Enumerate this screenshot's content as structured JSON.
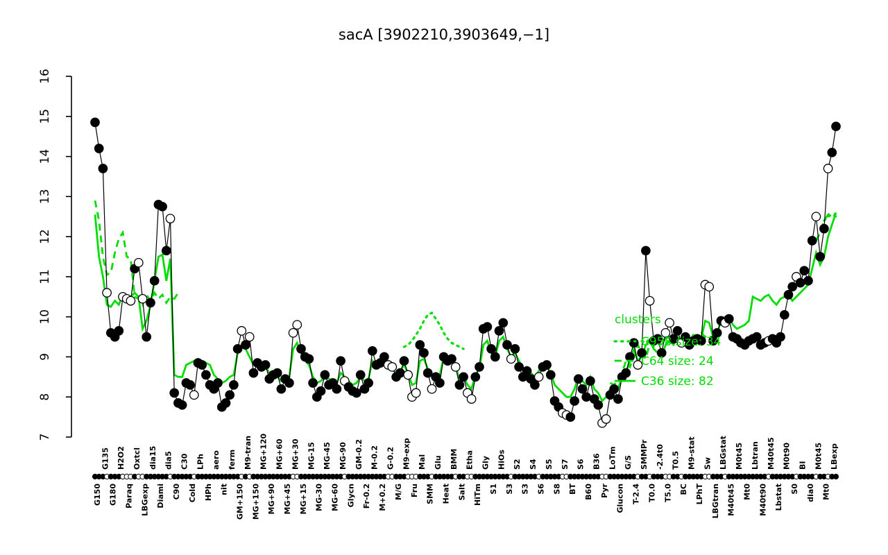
{
  "window": {
    "background": "#ffffff"
  },
  "chart_data": {
    "type": "line",
    "title": "sacA [3902210,3903649,−1]",
    "ylim": [
      7,
      16
    ],
    "yticks": [
      7,
      8,
      9,
      10,
      11,
      12,
      13,
      14,
      15,
      16
    ],
    "grid": false,
    "legend_position": "right-center-overlapping-plot",
    "colors": {
      "cluster_green": "#00DD00",
      "gene": "#000000",
      "background": "#ffffff"
    },
    "x_axis": {
      "points_per_label": 2,
      "row_pattern": "alternating-bottom-first",
      "labels": [
        "G150",
        "G135",
        "G180",
        "H2O2",
        "Paraq",
        "Oxtcl",
        "LBGexp",
        "dia15",
        "Diami",
        "dia5",
        "C90",
        "C30",
        "Cold",
        "LPh",
        "HPh",
        "aero",
        "nit",
        "ferm",
        "GM+150",
        "M9-tran",
        "MG+150",
        "MG+120",
        "MG+90",
        "MG+60",
        "MG+45",
        "MG+30",
        "MG+15",
        "MG-15",
        "MG-30",
        "MG-45",
        "MG-60",
        "MG-90",
        "Glycn",
        "GM-0.2",
        "Fr-0.2",
        "M-0.2",
        "M+0.2",
        "G-0.2",
        "M/G",
        "M9-exp",
        "Fru",
        "Mal",
        "SMM",
        "Glu",
        "Heat",
        "BMM",
        "Salt",
        "Etha",
        "HiTm",
        "Gly",
        "S1",
        "HiOs",
        "S3",
        "S2",
        "S3",
        "S4",
        "S6",
        "S5",
        "S8",
        "S7",
        "BT",
        "S6",
        "B60",
        "B36",
        "Pyr",
        "LoTm",
        "Glucon",
        "G/S",
        "T-2.4",
        "SMMPr",
        "T0.0",
        "-2.4t0",
        "T5.0",
        "T0.5",
        "BC",
        "M9-stat",
        "LPhT",
        "Sw",
        "LBGtran",
        "LBGstat",
        "M40t45",
        "M0t45",
        "Mt0",
        "Lbtran",
        "M40t90",
        "M40t45",
        "Lbstat",
        "M0t90",
        "S0",
        "BI",
        "dia0",
        "M0t45",
        "Mt0",
        "LBexp"
      ]
    },
    "gene_profile": {
      "pair_values": [
        [
          14.85,
          14.2
        ],
        [
          13.7,
          10.6
        ],
        [
          9.6,
          9.5
        ],
        [
          9.65,
          10.5
        ],
        [
          10.45,
          10.4
        ],
        [
          11.2,
          11.35
        ],
        [
          10.45,
          9.5
        ],
        [
          10.35,
          10.9
        ],
        [
          12.8,
          12.75
        ],
        [
          11.65,
          12.45
        ],
        [
          8.1,
          7.85
        ],
        [
          7.8,
          8.35
        ],
        [
          8.3,
          8.05
        ],
        [
          8.85,
          8.8
        ],
        [
          8.55,
          8.3
        ],
        [
          8.2,
          8.35
        ],
        [
          7.75,
          7.85
        ],
        [
          8.05,
          8.3
        ],
        [
          9.2,
          9.65
        ],
        [
          9.3,
          9.5
        ],
        [
          8.6,
          8.85
        ],
        [
          8.75,
          8.8
        ],
        [
          8.45,
          8.55
        ],
        [
          8.6,
          8.2
        ],
        [
          8.45,
          8.35
        ],
        [
          9.6,
          9.8
        ],
        [
          9.2,
          9.0
        ],
        [
          8.95,
          8.35
        ],
        [
          8.0,
          8.15
        ],
        [
          8.55,
          8.3
        ],
        [
          8.35,
          8.2
        ],
        [
          8.9,
          8.4
        ],
        [
          8.25,
          8.15
        ],
        [
          8.1,
          8.55
        ],
        [
          8.2,
          8.35
        ],
        [
          9.15,
          8.8
        ],
        [
          8.85,
          9.0
        ],
        [
          8.8,
          8.75
        ],
        [
          8.5,
          8.6
        ],
        [
          8.9,
          8.55
        ],
        [
          8.0,
          8.1
        ],
        [
          9.3,
          9.1
        ],
        [
          8.6,
          8.2
        ],
        [
          8.5,
          8.35
        ],
        [
          9.0,
          8.9
        ],
        [
          8.95,
          8.75
        ],
        [
          8.3,
          8.5
        ],
        [
          8.1,
          7.95
        ],
        [
          8.5,
          8.75
        ],
        [
          9.7,
          9.75
        ],
        [
          9.2,
          9.0
        ],
        [
          9.65,
          9.85
        ],
        [
          9.3,
          8.95
        ],
        [
          9.2,
          8.75
        ],
        [
          8.5,
          8.65
        ],
        [
          8.45,
          8.3
        ],
        [
          8.5,
          8.75
        ],
        [
          8.8,
          8.55
        ],
        [
          7.9,
          7.75
        ],
        [
          7.6,
          7.55
        ],
        [
          7.5,
          7.9
        ],
        [
          8.45,
          8.2
        ],
        [
          8.0,
          8.4
        ],
        [
          7.95,
          7.8
        ],
        [
          7.35,
          7.45
        ],
        [
          8.05,
          8.2
        ],
        [
          7.95,
          8.5
        ],
        [
          8.6,
          9.0
        ],
        [
          9.35,
          8.8
        ],
        [
          9.1,
          11.65
        ],
        [
          10.4,
          9.4
        ],
        [
          9.45,
          9.1
        ],
        [
          9.6,
          9.85
        ],
        [
          9.45,
          9.65
        ],
        [
          9.35,
          9.5
        ],
        [
          9.3,
          9.4
        ],
        [
          9.45,
          9.4
        ],
        [
          10.8,
          10.75
        ],
        [
          9.4,
          9.6
        ],
        [
          9.9,
          9.85
        ],
        [
          9.95,
          9.5
        ],
        [
          9.45,
          9.35
        ],
        [
          9.3,
          9.4
        ],
        [
          9.45,
          9.5
        ],
        [
          9.3,
          9.35
        ],
        [
          9.4,
          9.45
        ],
        [
          9.35,
          9.5
        ],
        [
          10.05,
          10.55
        ],
        [
          10.75,
          11.0
        ],
        [
          10.85,
          11.15
        ],
        [
          10.9,
          11.9
        ],
        [
          12.5,
          11.5
        ],
        [
          12.2,
          13.7
        ],
        [
          14.1,
          14.75
        ]
      ],
      "pair_markers": [
        "ff",
        "fo",
        "ff",
        "fo",
        "oo",
        "fo",
        "of",
        "ff",
        "ff",
        "fo",
        "ff",
        "ff",
        "fo",
        "ff",
        "ff",
        "ff",
        "ff",
        "ff",
        "fo",
        "fo",
        "ff",
        "ff",
        "ff",
        "ff",
        "ff",
        "oo",
        "ff",
        "ff",
        "ff",
        "ff",
        "ff",
        "fo",
        "ff",
        "ff",
        "ff",
        "ff",
        "ff",
        "oo",
        "ff",
        "fo",
        "oo",
        "ff",
        "fo",
        "ff",
        "ff",
        "fo",
        "ff",
        "oo",
        "ff",
        "ff",
        "ff",
        "ff",
        "fo",
        "ff",
        "ff",
        "ff",
        "of",
        "ff",
        "ff",
        "oo",
        "ff",
        "ff",
        "ff",
        "ff",
        "oo",
        "ff",
        "ff",
        "ff",
        "fo",
        "ff",
        "of",
        "ff",
        "oo",
        "ff",
        "of",
        "ff",
        "ff",
        "oo",
        "ff",
        "fo",
        "ff",
        "ff",
        "ff",
        "ff",
        "ff",
        "of",
        "ff",
        "ff",
        "fo",
        "ff",
        "ff",
        "of",
        "fo",
        "ff"
      ]
    },
    "clusters": [
      {
        "name": "C958",
        "size": 34,
        "style": "dotted",
        "segments": [
          {
            "start": 78,
            "values": [
              9.25,
              9.3,
              9.4,
              9.55,
              9.7,
              9.9,
              10.05,
              10.1,
              9.95,
              9.8,
              9.6,
              9.45,
              9.35,
              9.3,
              9.25,
              9.2
            ]
          },
          {
            "start": 138,
            "values": [
              9.4,
              9.35,
              9.45,
              9.4,
              9.5,
              9.45,
              9.4,
              9.35,
              9.4,
              9.45,
              9.4,
              9.5,
              9.45,
              9.4
            ]
          },
          {
            "start": 184,
            "values": [
              12.4,
              12.5,
              12.55,
              12.5
            ]
          }
        ]
      },
      {
        "name": "C64",
        "size": 24,
        "style": "dashed",
        "segments": [
          {
            "start": 0,
            "values": [
              12.9,
              12.4,
              11.5,
              11.05,
              11.1,
              11.6,
              11.95,
              12.1,
              11.5,
              11.45,
              10.5,
              10.45,
              10.3,
              10.55,
              10.4,
              10.6,
              10.45,
              10.55,
              10.35,
              10.5,
              10.45,
              10.6
            ]
          },
          {
            "start": 130,
            "values": [
              8.35,
              8.3,
              8.45,
              8.6,
              8.9,
              8.75,
              9.0,
              9.3,
              9.1,
              8.95,
              9.35,
              9.25,
              9.4,
              9.3,
              9.45,
              9.5,
              9.4,
              9.45,
              9.55,
              9.5,
              9.45,
              9.55,
              9.5,
              9.6,
              9.5,
              9.55,
              9.45,
              9.5
            ]
          },
          {
            "start": 182,
            "values": [
              11.9,
              12.1,
              12.4,
              12.55,
              12.6,
              12.55
            ]
          }
        ]
      },
      {
        "name": "C36",
        "size": 82,
        "style": "solid",
        "segments": [
          {
            "start": 0,
            "values": [
              12.55,
              11.5,
              11.0,
              10.3,
              10.25,
              10.4,
              10.3,
              10.55,
              10.4,
              10.5,
              10.6,
              10.5,
              9.7,
              9.9,
              10.3,
              10.9,
              11.5,
              11.55,
              10.9,
              11.45,
              8.55,
              8.5,
              8.5,
              8.8,
              8.85,
              8.9,
              8.95,
              8.9,
              8.85,
              8.8,
              8.55,
              8.45,
              8.35,
              8.4,
              8.5,
              8.55,
              9.1,
              9.3,
              9.2,
              9.0,
              8.8,
              8.85,
              8.8,
              8.75,
              8.6,
              8.55,
              8.5,
              8.4,
              8.45,
              8.5,
              9.2,
              9.35,
              9.1,
              8.9,
              8.8,
              8.5,
              8.35,
              8.4,
              8.5,
              8.45,
              8.4,
              8.35,
              8.6,
              8.5,
              8.4,
              8.3,
              8.35,
              8.5,
              8.4,
              8.45,
              8.9,
              8.75,
              8.8,
              8.9,
              8.75,
              8.7,
              8.6,
              8.65,
              8.8,
              8.6,
              8.3,
              8.35,
              8.9,
              8.95,
              8.7,
              8.5,
              8.6,
              8.55,
              9.0,
              8.9,
              8.85,
              8.8,
              8.4,
              8.5,
              8.3,
              8.2,
              8.55,
              8.7,
              9.3,
              9.4,
              9.1,
              9.0,
              9.4,
              9.5,
              9.2,
              9.0,
              9.1,
              8.9,
              8.7,
              8.75,
              8.6,
              8.5,
              8.65,
              8.7,
              8.75,
              8.6,
              8.3,
              8.2,
              8.1,
              8.0,
              8.0,
              8.2,
              8.5,
              8.4,
              8.3,
              8.5,
              8.2,
              8.1,
              7.9,
              8.0,
              8.2,
              8.3,
              8.2,
              8.5,
              8.6,
              8.9,
              9.2,
              8.9,
              9.0,
              9.3,
              9.4,
              9.2,
              9.1,
              9.0,
              9.3,
              9.4,
              9.3,
              9.5,
              9.4,
              9.45,
              9.4,
              9.5,
              9.5,
              9.45,
              9.9,
              9.85,
              9.5,
              9.6,
              9.9,
              10.0,
              10.0,
              9.8,
              9.7,
              9.75,
              9.8,
              9.9,
              10.5,
              10.45,
              10.4,
              10.5,
              10.55,
              10.4,
              10.3,
              10.45,
              10.5,
              10.55,
              10.4,
              10.5,
              10.6,
              10.7,
              10.8,
              11.2,
              11.6,
              11.3,
              11.5,
              12.0,
              12.3,
              12.6
            ]
          }
        ]
      }
    ],
    "legend": {
      "title": "clusters",
      "items": [
        {
          "style": "dotted",
          "label": "C958 size: 34"
        },
        {
          "style": "dashed",
          "label": "C64 size: 24"
        },
        {
          "style": "solid",
          "label": "C36 size: 82"
        }
      ]
    }
  }
}
